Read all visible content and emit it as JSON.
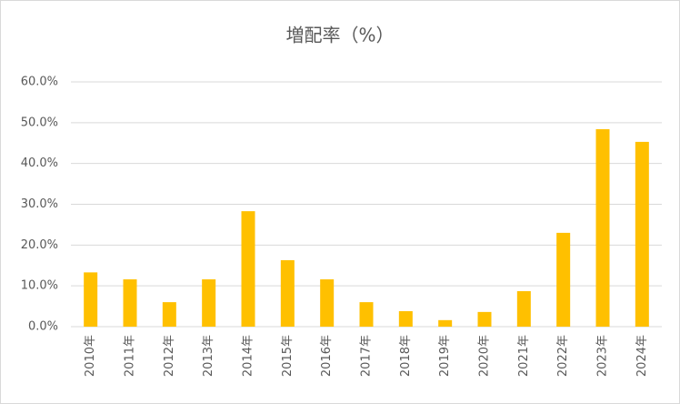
{
  "chart_data": {
    "type": "bar",
    "title": "増配率（%）",
    "categories": [
      "2010年",
      "2011年",
      "2012年",
      "2013年",
      "2014年",
      "2015年",
      "2016年",
      "2017年",
      "2018年",
      "2019年",
      "2020年",
      "2021年",
      "2022年",
      "2023年",
      "2024年"
    ],
    "values": [
      13.3,
      11.6,
      6.0,
      11.6,
      28.3,
      16.3,
      11.6,
      6.0,
      3.8,
      1.6,
      3.6,
      8.7,
      23.0,
      48.4,
      45.3
    ],
    "color": "#ffc000",
    "ylim": [
      0,
      60
    ],
    "yticks": [
      {
        "value": 0,
        "label": "0.0%"
      },
      {
        "value": 10,
        "label": "10.0%"
      },
      {
        "value": 20,
        "label": "20.0%"
      },
      {
        "value": 30,
        "label": "30.0%"
      },
      {
        "value": 40,
        "label": "40.0%"
      },
      {
        "value": 50,
        "label": "50.0%"
      },
      {
        "value": 60,
        "label": "60.0%"
      }
    ],
    "grid": true
  }
}
